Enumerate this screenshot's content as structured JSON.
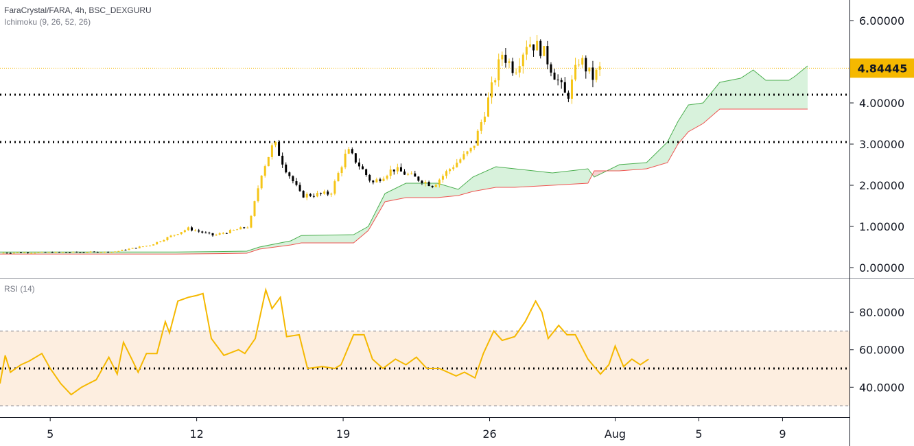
{
  "symbol_line": "FaraCrystal/FARA, 4h, BSC_DEXGURU",
  "indicator_line": "Ichimoku (9, 26, 52, 26)",
  "rsi_label": "RSI (14)",
  "colors": {
    "up": "#f5c518",
    "down": "#000000",
    "senkou_a": "#4caf50",
    "senkou_b": "#ef5350",
    "cloud_bull": "#d8f2dc",
    "cloud_bear": "#f7d3d3",
    "rsi_line": "#f5b800",
    "rsi_band": "#fdeee0",
    "last_price_tag": "#f5b800"
  },
  "chart_data": [
    {
      "type": "candlestick",
      "name": "price",
      "y_ticks": [
        "6.00000",
        "4.00000",
        "3.00000",
        "2.00000",
        "1.00000",
        "0.00000"
      ],
      "y_tick_values": [
        6,
        4,
        3,
        2,
        1,
        0
      ],
      "ylim": [
        -0.25,
        6.5
      ],
      "x_ticks": [
        "5",
        "12",
        "19",
        "26",
        "Aug",
        "5",
        "9"
      ],
      "x_tick_days": [
        5,
        12,
        19,
        26,
        32,
        36,
        40
      ],
      "xlim_days": [
        2.6,
        43.2
      ],
      "last_price": "4.84445",
      "last_price_value": 4.84445,
      "horizontal_levels": [
        4.2,
        3.05
      ],
      "key_closes": [
        {
          "day": 2.6,
          "value": 0.36
        },
        {
          "day": 8.0,
          "value": 0.38
        },
        {
          "day": 9.8,
          "value": 0.55
        },
        {
          "day": 11.6,
          "value": 0.95
        },
        {
          "day": 12.8,
          "value": 0.78
        },
        {
          "day": 14.5,
          "value": 1.0
        },
        {
          "day": 15.1,
          "value": 2.3
        },
        {
          "day": 15.7,
          "value": 3.05
        },
        {
          "day": 16.2,
          "value": 2.45
        },
        {
          "day": 17.0,
          "value": 1.75
        },
        {
          "day": 18.4,
          "value": 1.8
        },
        {
          "day": 19.2,
          "value": 2.85
        },
        {
          "day": 19.6,
          "value": 2.6
        },
        {
          "day": 20.4,
          "value": 2.05
        },
        {
          "day": 21.4,
          "value": 2.4
        },
        {
          "day": 23.3,
          "value": 2.0
        },
        {
          "day": 24.2,
          "value": 2.45
        },
        {
          "day": 25.2,
          "value": 2.9
        },
        {
          "day": 25.8,
          "value": 3.85
        },
        {
          "day": 26.6,
          "value": 5.2
        },
        {
          "day": 27.2,
          "value": 4.8
        },
        {
          "day": 27.8,
          "value": 5.5
        },
        {
          "day": 28.5,
          "value": 5.3
        },
        {
          "day": 29.3,
          "value": 4.5
        },
        {
          "day": 29.7,
          "value": 4.1
        },
        {
          "day": 30.3,
          "value": 5.1
        },
        {
          "day": 30.9,
          "value": 4.6
        },
        {
          "day": 31.3,
          "value": 4.84
        }
      ],
      "senkou_a": [
        {
          "day": 2.6,
          "value": 0.38
        },
        {
          "day": 11.0,
          "value": 0.38
        },
        {
          "day": 13.0,
          "value": 0.39
        },
        {
          "day": 14.4,
          "value": 0.4
        },
        {
          "day": 15.0,
          "value": 0.5
        },
        {
          "day": 16.5,
          "value": 0.65
        },
        {
          "day": 17.0,
          "value": 0.78
        },
        {
          "day": 19.5,
          "value": 0.8
        },
        {
          "day": 20.2,
          "value": 1.0
        },
        {
          "day": 21.0,
          "value": 1.8
        },
        {
          "day": 22.0,
          "value": 2.05
        },
        {
          "day": 23.5,
          "value": 2.05
        },
        {
          "day": 24.5,
          "value": 1.9
        },
        {
          "day": 25.2,
          "value": 2.2
        },
        {
          "day": 26.3,
          "value": 2.45
        },
        {
          "day": 27.2,
          "value": 2.4
        },
        {
          "day": 29.0,
          "value": 2.3
        },
        {
          "day": 30.7,
          "value": 2.4
        },
        {
          "day": 31.0,
          "value": 2.2
        },
        {
          "day": 32.2,
          "value": 2.5
        },
        {
          "day": 33.5,
          "value": 2.55
        },
        {
          "day": 34.5,
          "value": 3.05
        },
        {
          "day": 35.0,
          "value": 3.55
        },
        {
          "day": 35.5,
          "value": 3.95
        },
        {
          "day": 36.2,
          "value": 4.0
        },
        {
          "day": 37.0,
          "value": 4.5
        },
        {
          "day": 38.0,
          "value": 4.6
        },
        {
          "day": 38.6,
          "value": 4.8
        },
        {
          "day": 39.2,
          "value": 4.55
        },
        {
          "day": 40.3,
          "value": 4.55
        },
        {
          "day": 40.6,
          "value": 4.65
        },
        {
          "day": 41.2,
          "value": 4.9
        }
      ],
      "senkou_b": [
        {
          "day": 2.6,
          "value": 0.33
        },
        {
          "day": 11.0,
          "value": 0.33
        },
        {
          "day": 13.0,
          "value": 0.34
        },
        {
          "day": 14.4,
          "value": 0.35
        },
        {
          "day": 15.0,
          "value": 0.45
        },
        {
          "day": 16.5,
          "value": 0.55
        },
        {
          "day": 17.0,
          "value": 0.6
        },
        {
          "day": 19.5,
          "value": 0.6
        },
        {
          "day": 20.2,
          "value": 0.9
        },
        {
          "day": 21.0,
          "value": 1.6
        },
        {
          "day": 22.0,
          "value": 1.7
        },
        {
          "day": 23.5,
          "value": 1.7
        },
        {
          "day": 24.5,
          "value": 1.75
        },
        {
          "day": 25.2,
          "value": 1.85
        },
        {
          "day": 26.3,
          "value": 1.95
        },
        {
          "day": 27.2,
          "value": 1.95
        },
        {
          "day": 29.0,
          "value": 2.0
        },
        {
          "day": 30.7,
          "value": 2.05
        },
        {
          "day": 31.0,
          "value": 2.35
        },
        {
          "day": 32.2,
          "value": 2.35
        },
        {
          "day": 33.5,
          "value": 2.4
        },
        {
          "day": 34.5,
          "value": 2.55
        },
        {
          "day": 35.0,
          "value": 3.0
        },
        {
          "day": 35.5,
          "value": 3.3
        },
        {
          "day": 36.2,
          "value": 3.5
        },
        {
          "day": 37.0,
          "value": 3.85
        },
        {
          "day": 41.2,
          "value": 3.85
        }
      ]
    },
    {
      "type": "line",
      "name": "RSI (14)",
      "y_ticks": [
        "80.0000",
        "60.0000",
        "40.0000"
      ],
      "y_tick_values": [
        80,
        60,
        40
      ],
      "ylim": [
        24,
        98
      ],
      "band": [
        30,
        70
      ],
      "midline": 50,
      "points": [
        {
          "day": 2.6,
          "value": 42
        },
        {
          "day": 2.85,
          "value": 57
        },
        {
          "day": 3.1,
          "value": 48
        },
        {
          "day": 3.6,
          "value": 52
        },
        {
          "day": 4.0,
          "value": 54
        },
        {
          "day": 4.6,
          "value": 58
        },
        {
          "day": 5.0,
          "value": 50
        },
        {
          "day": 5.5,
          "value": 42
        },
        {
          "day": 6.0,
          "value": 36
        },
        {
          "day": 6.5,
          "value": 40
        },
        {
          "day": 7.2,
          "value": 44
        },
        {
          "day": 7.8,
          "value": 56
        },
        {
          "day": 8.2,
          "value": 47
        },
        {
          "day": 8.5,
          "value": 64
        },
        {
          "day": 8.9,
          "value": 55
        },
        {
          "day": 9.2,
          "value": 48
        },
        {
          "day": 9.6,
          "value": 58
        },
        {
          "day": 10.1,
          "value": 58
        },
        {
          "day": 10.5,
          "value": 75
        },
        {
          "day": 10.7,
          "value": 69
        },
        {
          "day": 11.1,
          "value": 86
        },
        {
          "day": 11.6,
          "value": 88
        },
        {
          "day": 12.0,
          "value": 89
        },
        {
          "day": 12.3,
          "value": 90
        },
        {
          "day": 12.7,
          "value": 66
        },
        {
          "day": 13.3,
          "value": 57
        },
        {
          "day": 14.0,
          "value": 60
        },
        {
          "day": 14.3,
          "value": 58
        },
        {
          "day": 14.8,
          "value": 66
        },
        {
          "day": 15.3,
          "value": 92
        },
        {
          "day": 15.6,
          "value": 82
        },
        {
          "day": 16.0,
          "value": 88
        },
        {
          "day": 16.3,
          "value": 67
        },
        {
          "day": 16.9,
          "value": 68
        },
        {
          "day": 17.3,
          "value": 50
        },
        {
          "day": 18.0,
          "value": 51
        },
        {
          "day": 18.6,
          "value": 50
        },
        {
          "day": 18.9,
          "value": 52
        },
        {
          "day": 19.5,
          "value": 68
        },
        {
          "day": 20.0,
          "value": 68
        },
        {
          "day": 20.4,
          "value": 55
        },
        {
          "day": 20.9,
          "value": 50
        },
        {
          "day": 21.5,
          "value": 55
        },
        {
          "day": 22.0,
          "value": 52
        },
        {
          "day": 22.5,
          "value": 56
        },
        {
          "day": 23.0,
          "value": 50
        },
        {
          "day": 23.6,
          "value": 50
        },
        {
          "day": 24.4,
          "value": 46
        },
        {
          "day": 24.8,
          "value": 48
        },
        {
          "day": 25.3,
          "value": 45
        },
        {
          "day": 25.7,
          "value": 58
        },
        {
          "day": 26.2,
          "value": 70
        },
        {
          "day": 26.6,
          "value": 65
        },
        {
          "day": 27.2,
          "value": 67
        },
        {
          "day": 27.7,
          "value": 75
        },
        {
          "day": 28.2,
          "value": 86
        },
        {
          "day": 28.5,
          "value": 80
        },
        {
          "day": 28.8,
          "value": 66
        },
        {
          "day": 29.3,
          "value": 73
        },
        {
          "day": 29.7,
          "value": 68
        },
        {
          "day": 30.1,
          "value": 68
        },
        {
          "day": 30.7,
          "value": 55
        },
        {
          "day": 31.3,
          "value": 47
        },
        {
          "day": 31.7,
          "value": 52
        },
        {
          "day": 32.0,
          "value": 62
        },
        {
          "day": 32.4,
          "value": 51
        },
        {
          "day": 32.8,
          "value": 55
        },
        {
          "day": 33.2,
          "value": 52
        },
        {
          "day": 33.6,
          "value": 55
        }
      ]
    }
  ]
}
